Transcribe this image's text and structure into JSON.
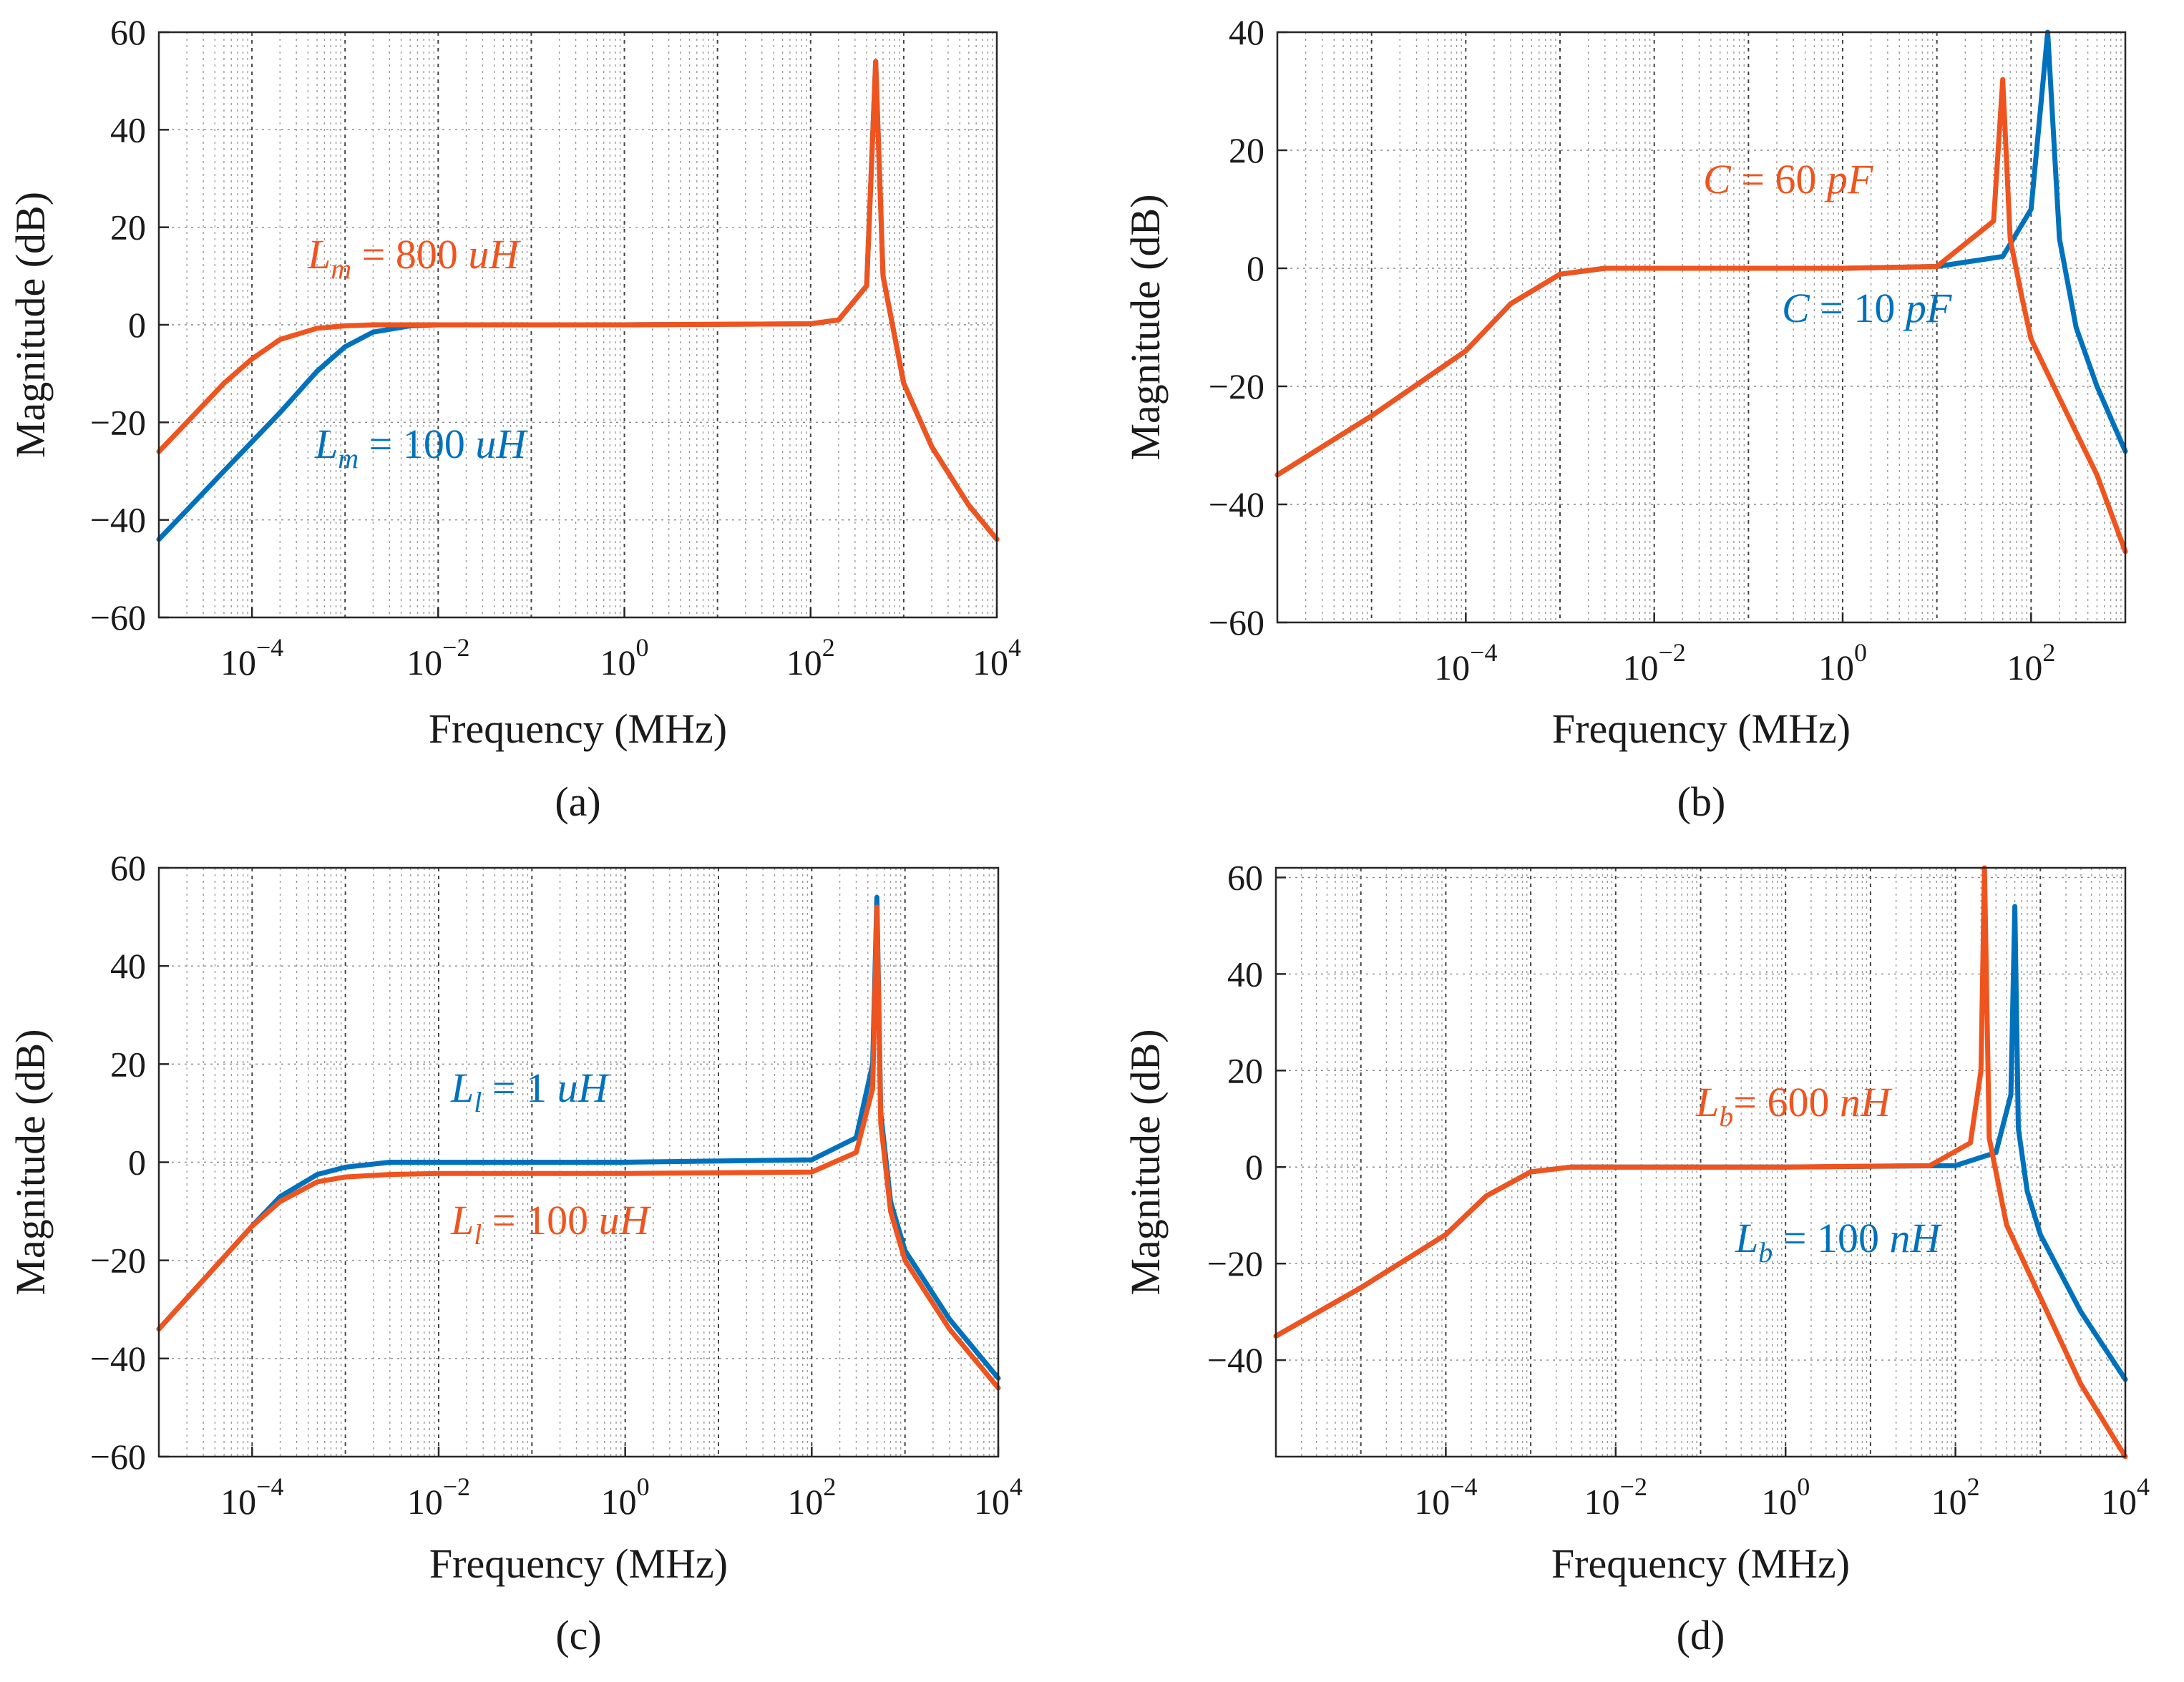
{
  "colors": {
    "blue": "#0072BD",
    "orange": "#F0541E",
    "axis": "#262626"
  },
  "chart_data": [
    {
      "type": "line",
      "panel_label": "(a)",
      "xscale": "log",
      "xlabel": "Frequency  (MHz)",
      "ylabel": "Magnitude  (dB)",
      "xlim": [
        1e-05,
        10000.0
      ],
      "ylim": [
        -60,
        60
      ],
      "xticks": [
        0.0001,
        0.01,
        1,
        100,
        10000
      ],
      "xtick_labels": [
        {
          "base": "10",
          "exp": "−4"
        },
        {
          "base": "10",
          "exp": "−2"
        },
        {
          "base": "10",
          "exp": "0"
        },
        {
          "base": "10",
          "exp": "2"
        },
        {
          "base": "10",
          "exp": "4"
        }
      ],
      "yticks": [
        -60,
        -40,
        -20,
        0,
        20,
        40,
        60
      ],
      "ytick_labels": [
        "−60",
        "−40",
        "−20",
        "0",
        "20",
        "40",
        "60"
      ],
      "grid": true,
      "series": [
        {
          "name_sym": "L",
          "name_sub": "m",
          "name_rest": " =  100 ",
          "name_unit": "uH",
          "color": "blue",
          "x": [
            1e-05,
            2e-05,
            5e-05,
            0.0001,
            0.0002,
            0.0005,
            0.001,
            0.002,
            0.005,
            0.01,
            1,
            100,
            200,
            400,
            500,
            600,
            1000,
            2000,
            5000,
            10000
          ],
          "y": [
            -44,
            -38,
            -30,
            -24,
            -18,
            -9.5,
            -4.5,
            -1.5,
            -0.2,
            0,
            0,
            0.2,
            1,
            8,
            54,
            10,
            -12,
            -25,
            -37,
            -44
          ]
        },
        {
          "name_sym": "L",
          "name_sub": "m",
          "name_rest": " =  800 ",
          "name_unit": "uH",
          "color": "orange",
          "x": [
            1e-05,
            2e-05,
            5e-05,
            0.0001,
            0.0002,
            0.0005,
            0.001,
            0.002,
            0.005,
            0.01,
            1,
            100,
            200,
            400,
            500,
            600,
            1000,
            2000,
            5000,
            10000
          ],
          "y": [
            -26,
            -20,
            -12,
            -7,
            -3,
            -0.7,
            -0.2,
            0,
            0,
            0,
            0,
            0.2,
            1,
            8,
            54,
            10,
            -12,
            -25,
            -37,
            -44
          ]
        }
      ]
    },
    {
      "type": "line",
      "panel_label": "(b)",
      "xscale": "log",
      "xlabel": "Frequency  (MHz)",
      "ylabel": "Magnitude  (dB)",
      "xlim": [
        1e-06,
        1000
      ],
      "ylim": [
        -60,
        40
      ],
      "xticks": [
        0.0001,
        0.01,
        1,
        100
      ],
      "xtick_labels": [
        {
          "base": "10",
          "exp": "−4"
        },
        {
          "base": "10",
          "exp": "−2"
        },
        {
          "base": "10",
          "exp": "0"
        },
        {
          "base": "10",
          "exp": "2"
        }
      ],
      "yticks": [
        -60,
        -40,
        -20,
        0,
        20,
        40
      ],
      "ytick_labels": [
        "−60",
        "−40",
        "−20",
        "0",
        "20",
        "40"
      ],
      "grid": true,
      "series": [
        {
          "name_sym": "C",
          "name_sub": "",
          "name_rest": " =  10 ",
          "name_unit": "pF",
          "color": "blue",
          "x": [
            1e-06,
            1e-05,
            0.0001,
            0.0003,
            0.001,
            0.003,
            0.01,
            1,
            10,
            50,
            100,
            150,
            200,
            300,
            500,
            1000
          ],
          "y": [
            -35,
            -25,
            -14,
            -6,
            -1,
            0,
            0,
            0,
            0.3,
            2,
            10,
            40,
            5,
            -10,
            -20,
            -31
          ]
        },
        {
          "name_sym": "C",
          "name_sub": "",
          "name_rest": " =  60 ",
          "name_unit": "pF",
          "color": "orange",
          "x": [
            1e-06,
            1e-05,
            0.0001,
            0.0003,
            0.001,
            0.003,
            0.01,
            1,
            10,
            40,
            50,
            60,
            80,
            100,
            200,
            500,
            1000
          ],
          "y": [
            -35,
            -25,
            -14,
            -6,
            -1,
            0,
            0,
            0,
            0.3,
            8,
            32,
            5,
            -5,
            -12,
            -22,
            -35,
            -48
          ]
        }
      ]
    },
    {
      "type": "line",
      "panel_label": "(c)",
      "xscale": "log",
      "xlabel": "Frequency  (MHz)",
      "ylabel": "Magnitude  (dB)",
      "xlim": [
        1e-05,
        10000.0
      ],
      "ylim": [
        -60,
        60
      ],
      "xticks": [
        0.0001,
        0.01,
        1,
        100,
        10000
      ],
      "xtick_labels": [
        {
          "base": "10",
          "exp": "−4"
        },
        {
          "base": "10",
          "exp": "−2"
        },
        {
          "base": "10",
          "exp": "0"
        },
        {
          "base": "10",
          "exp": "2"
        },
        {
          "base": "10",
          "exp": "4"
        }
      ],
      "yticks": [
        -60,
        -40,
        -20,
        0,
        20,
        40,
        60
      ],
      "ytick_labels": [
        "−60",
        "−40",
        "−20",
        "0",
        "20",
        "40",
        "60"
      ],
      "grid": true,
      "series": [
        {
          "name_sym": "L",
          "name_sub": "l",
          "name_rest": " =  1 ",
          "name_unit": "uH",
          "color": "blue",
          "x": [
            1e-05,
            3e-05,
            0.0001,
            0.0002,
            0.0005,
            0.001,
            0.003,
            0.01,
            1,
            100,
            300,
            450,
            500,
            550,
            700,
            1000,
            3000,
            10000
          ],
          "y": [
            -34,
            -24,
            -13,
            -7,
            -2.5,
            -1,
            0,
            0,
            0,
            0.5,
            5,
            20,
            54,
            10,
            -8,
            -18,
            -32,
            -44
          ]
        },
        {
          "name_sym": "L",
          "name_sub": "l",
          "name_rest": " =  100 ",
          "name_unit": "uH",
          "color": "orange",
          "x": [
            1e-05,
            3e-05,
            0.0001,
            0.0002,
            0.0005,
            0.001,
            0.003,
            0.01,
            1,
            100,
            300,
            450,
            500,
            550,
            700,
            1000,
            3000,
            10000
          ],
          "y": [
            -34,
            -24,
            -13,
            -8,
            -4,
            -3,
            -2.5,
            -2.3,
            -2.3,
            -2,
            2,
            15,
            52,
            8,
            -10,
            -20,
            -34,
            -46
          ]
        }
      ]
    },
    {
      "type": "line",
      "panel_label": "(d)",
      "xscale": "log",
      "xlabel": "Frequency  (MHz)",
      "ylabel": "Magnitude  (dB)",
      "xlim": [
        1e-06,
        10000.0
      ],
      "ylim": [
        -60,
        62
      ],
      "xticks": [
        0.0001,
        0.01,
        1,
        100,
        10000
      ],
      "xtick_labels": [
        {
          "base": "10",
          "exp": "−4"
        },
        {
          "base": "10",
          "exp": "−2"
        },
        {
          "base": "10",
          "exp": "0"
        },
        {
          "base": "10",
          "exp": "2"
        },
        {
          "base": "10",
          "exp": "4"
        }
      ],
      "yticks": [
        -40,
        -20,
        0,
        20,
        40,
        60
      ],
      "ytick_labels": [
        "−40",
        "−20",
        "0",
        "20",
        "40",
        "60"
      ],
      "grid": true,
      "series": [
        {
          "name_sym": "L",
          "name_sub": "b",
          "name_rest": " =  100 ",
          "name_unit": "nH",
          "color": "blue",
          "x": [
            1e-06,
            1e-05,
            0.0001,
            0.0003,
            0.001,
            0.003,
            0.01,
            1,
            100,
            300,
            450,
            500,
            550,
            700,
            1000,
            3000,
            10000
          ],
          "y": [
            -35,
            -25,
            -14,
            -6,
            -1,
            0,
            0,
            0,
            0.3,
            3,
            15,
            54,
            8,
            -5,
            -14,
            -30,
            -44
          ]
        },
        {
          "name_sym": "L",
          "name_sub": "b",
          "name_rest": "=  600 ",
          "name_unit": "nH",
          "color": "orange",
          "x": [
            1e-06,
            1e-05,
            0.0001,
            0.0003,
            0.001,
            0.003,
            0.01,
            1,
            50,
            150,
            200,
            220,
            250,
            400,
            1000,
            3000,
            10000
          ],
          "y": [
            -35,
            -25,
            -14,
            -6,
            -1,
            0,
            0,
            0,
            0.3,
            5,
            20,
            62,
            6,
            -12,
            -27,
            -45,
            -60
          ]
        }
      ]
    }
  ]
}
